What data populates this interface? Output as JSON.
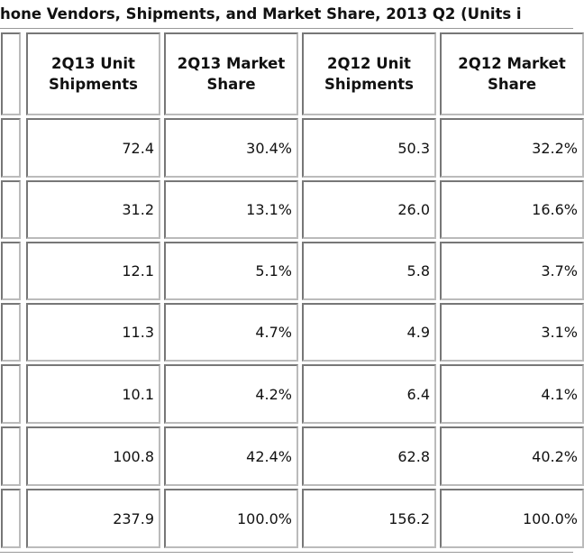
{
  "title": "hone Vendors, Shipments, and Market Share, 2013 Q2 (Units i",
  "columns": [
    "2Q13 Unit Shipments",
    "2Q13 Market Share",
    "2Q12 Unit Shipments",
    "2Q12 Market Share"
  ],
  "columns_display": [
    [
      "2Q13 Unit",
      "Shipments"
    ],
    [
      "2Q13 Market",
      "Share"
    ],
    [
      "2Q12 Unit",
      "Shipments"
    ],
    [
      "2Q12 Market",
      "Share"
    ]
  ],
  "rows": [
    [
      "72.4",
      "30.4%",
      "50.3",
      "32.2%"
    ],
    [
      "31.2",
      "13.1%",
      "26.0",
      "16.6%"
    ],
    [
      "12.1",
      "5.1%",
      "5.8",
      "3.7%"
    ],
    [
      "11.3",
      "4.7%",
      "4.9",
      "3.1%"
    ],
    [
      "10.1",
      "4.2%",
      "6.4",
      "4.1%"
    ],
    [
      "100.8",
      "42.4%",
      "62.8",
      "40.2%"
    ],
    [
      "237.9",
      "100.0%",
      "156.2",
      "100.0%"
    ]
  ]
}
